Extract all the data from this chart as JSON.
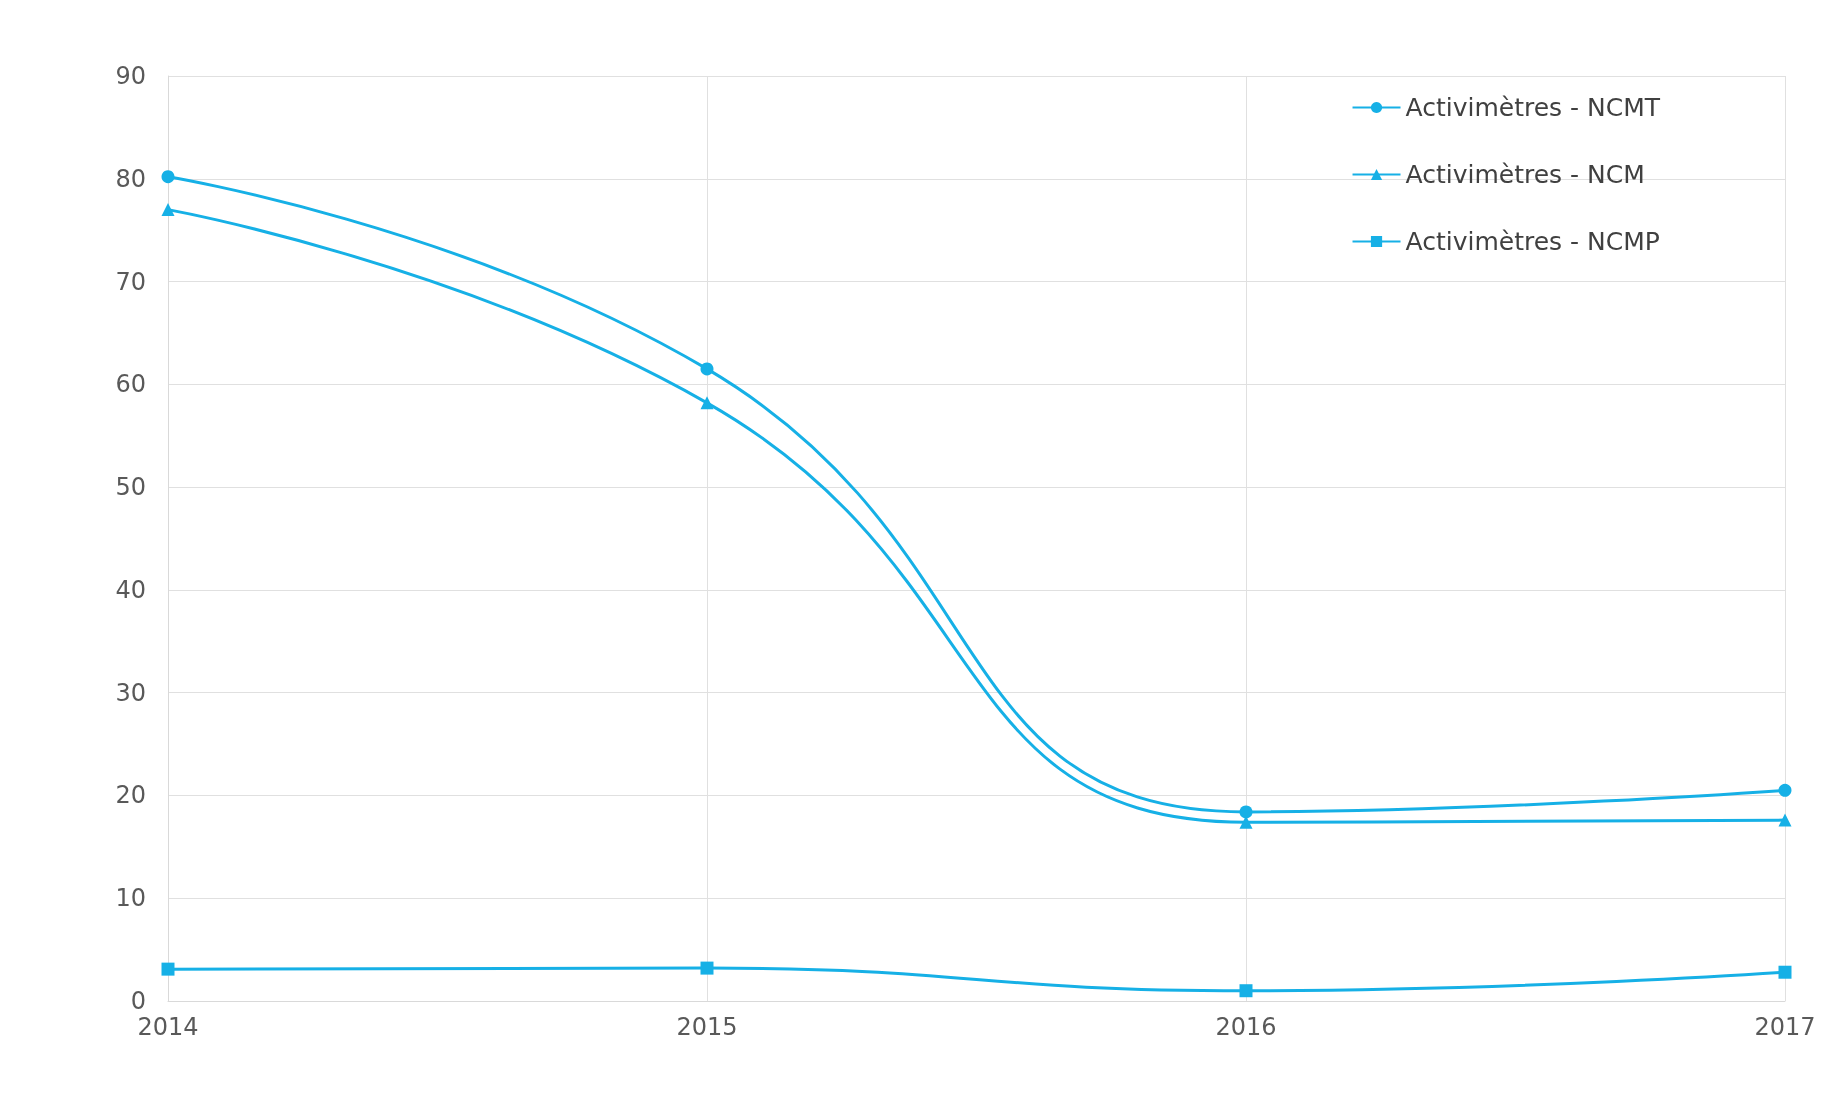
{
  "chart_data": {
    "type": "line",
    "categories": [
      "2014",
      "2015",
      "2016",
      "2017"
    ],
    "series": [
      {
        "name": "Activimètres - NCMT",
        "color": "#16b0e6",
        "marker": "circle",
        "values": [
          80.2,
          61.5,
          18.4,
          20.5
        ]
      },
      {
        "name": "Activimètres - NCM",
        "color": "#16b0e6",
        "marker": "triangle",
        "values": [
          77.0,
          58.2,
          17.4,
          17.6
        ]
      },
      {
        "name": "Activimètres - NCMP",
        "color": "#16b0e6",
        "marker": "square",
        "values": [
          3.1,
          3.2,
          1.0,
          2.8
        ]
      }
    ],
    "ylim": [
      0,
      90
    ],
    "yticks": [
      0,
      10,
      20,
      30,
      40,
      50,
      60,
      70,
      80,
      90
    ],
    "grid": true,
    "legend": "top right",
    "line_style": "solid"
  }
}
